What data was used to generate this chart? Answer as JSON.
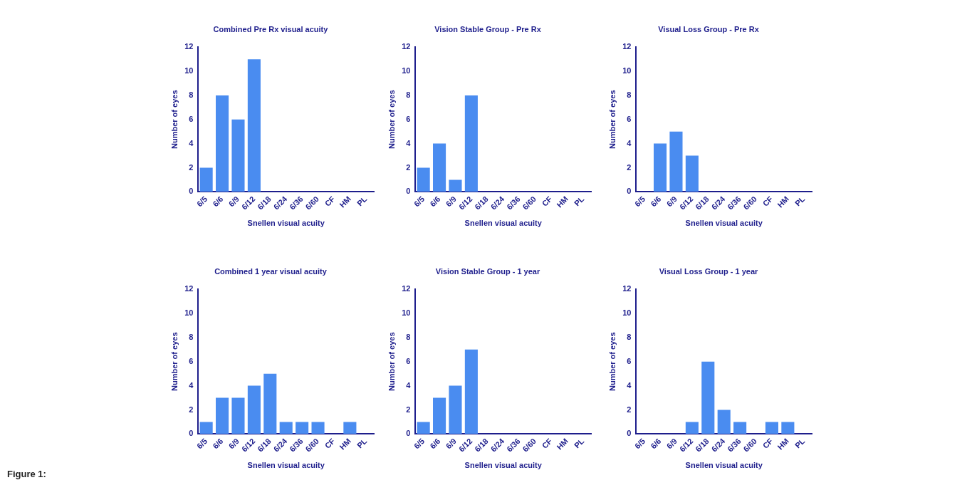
{
  "chart_data": [
    {
      "type": "bar",
      "title": "Combined Pre Rx visual acuity",
      "xlabel": "Snellen visual acuity",
      "ylabel": "Number of eyes",
      "categories": [
        "6/5",
        "6/6",
        "6/9",
        "6/12",
        "6/18",
        "6/24",
        "6/36",
        "6/60",
        "CF",
        "HM",
        "PL"
      ],
      "values": [
        2,
        8,
        6,
        11,
        0,
        0,
        0,
        0,
        0,
        0,
        0
      ],
      "color": "#4a8cf0",
      "ylim": [
        0,
        12
      ],
      "yticks": [
        0,
        2,
        4,
        6,
        8,
        10,
        12
      ],
      "grid": false,
      "legend": false,
      "annotations": [
        "Figure 1:"
      ]
    },
    {
      "type": "bar",
      "title": "Vision Stable Group - Pre Rx",
      "xlabel": "Snellen visual acuity",
      "ylabel": "Number of eyes",
      "categories": [
        "6/5",
        "6/6",
        "6/9",
        "6/12",
        "6/18",
        "6/24",
        "6/36",
        "6/60",
        "CF",
        "HM",
        "PL"
      ],
      "values": [
        2,
        4,
        1,
        8,
        0,
        0,
        0,
        0,
        0,
        0,
        0
      ],
      "color": "#4a8cf0",
      "ylim": [
        0,
        12
      ],
      "yticks": [
        0,
        2,
        4,
        6,
        8,
        10,
        12
      ],
      "grid": false,
      "legend": false
    },
    {
      "type": "bar",
      "title": "Visual Loss Group - Pre Rx",
      "xlabel": "Snellen visual acuity",
      "ylabel": "Number of eyes",
      "categories": [
        "6/5",
        "6/6",
        "6/9",
        "6/12",
        "6/18",
        "6/24",
        "6/36",
        "6/60",
        "CF",
        "HM",
        "PL"
      ],
      "values": [
        0,
        4,
        5,
        3,
        0,
        0,
        0,
        0,
        0,
        0,
        0
      ],
      "color": "#4a8cf0",
      "ylim": [
        0,
        12
      ],
      "yticks": [
        0,
        2,
        4,
        6,
        8,
        10,
        12
      ],
      "grid": false,
      "legend": false
    },
    {
      "type": "bar",
      "title": "Combined 1 year visual acuity",
      "xlabel": "Snellen visual acuity",
      "ylabel": "Number of eyes",
      "categories": [
        "6/5",
        "6/6",
        "6/9",
        "6/12",
        "6/18",
        "6/24",
        "6/36",
        "6/60",
        "CF",
        "HM",
        "PL"
      ],
      "values": [
        1,
        3,
        3,
        4,
        5,
        1,
        1,
        1,
        0,
        1,
        0
      ],
      "color": "#4a8cf0",
      "ylim": [
        0,
        12
      ],
      "yticks": [
        0,
        2,
        4,
        6,
        8,
        10,
        12
      ],
      "grid": false,
      "legend": false
    },
    {
      "type": "bar",
      "title": "Vision Stable Group - 1 year",
      "xlabel": "Snellen visual acuity",
      "ylabel": "Number of eyes",
      "categories": [
        "6/5",
        "6/6",
        "6/9",
        "6/12",
        "6/18",
        "6/24",
        "6/36",
        "6/60",
        "CF",
        "HM",
        "PL"
      ],
      "values": [
        1,
        3,
        4,
        7,
        0,
        0,
        0,
        0,
        0,
        0,
        0
      ],
      "color": "#4a8cf0",
      "ylim": [
        0,
        12
      ],
      "yticks": [
        0,
        2,
        4,
        6,
        8,
        10,
        12
      ],
      "grid": false,
      "legend": false
    },
    {
      "type": "bar",
      "title": "Visual Loss Group - 1 year",
      "xlabel": "Snellen visual acuity",
      "ylabel": "Number of eyes",
      "categories": [
        "6/5",
        "6/6",
        "6/9",
        "6/12",
        "6/18",
        "6/24",
        "6/36",
        "6/60",
        "CF",
        "HM",
        "PL"
      ],
      "values": [
        0,
        0,
        0,
        1,
        6,
        2,
        1,
        0,
        1,
        1,
        0
      ],
      "color": "#4a8cf0",
      "ylim": [
        0,
        12
      ],
      "yticks": [
        0,
        2,
        4,
        6,
        8,
        10,
        12
      ],
      "grid": false,
      "legend": false
    }
  ]
}
